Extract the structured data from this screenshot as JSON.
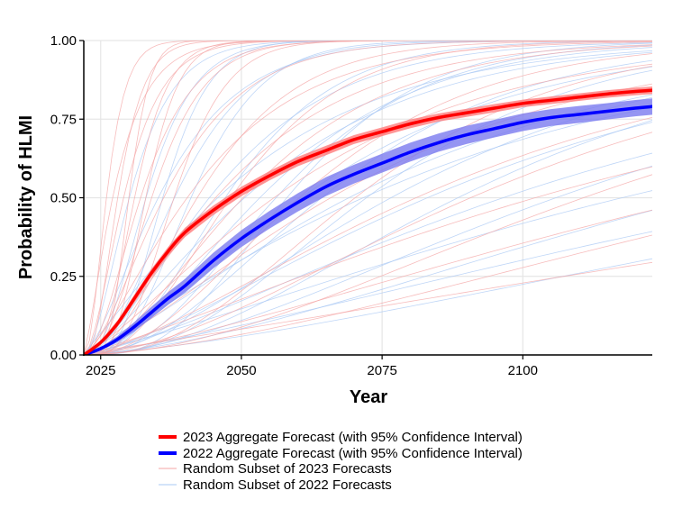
{
  "chart_data": {
    "type": "line",
    "xlabel": "Year",
    "ylabel": "Probability of HLMI",
    "xlim": [
      2022,
      2123
    ],
    "ylim": [
      0,
      1
    ],
    "x_ticks": [
      "2025",
      "2050",
      "2075",
      "2100"
    ],
    "y_ticks": [
      "0.00",
      "0.25",
      "0.50",
      "0.75",
      "1.00"
    ],
    "grid": true,
    "legend_position": "bottom",
    "series": [
      {
        "name": "2023 Aggregate Forecast (with 95% Confidence Interval)",
        "color": "#ff0000",
        "x": [
          2022,
          2025,
          2028,
          2031,
          2034,
          2037,
          2040,
          2045,
          2050,
          2055,
          2060,
          2065,
          2070,
          2075,
          2080,
          2085,
          2090,
          2095,
          2100,
          2105,
          2110,
          2115,
          2120,
          2123
        ],
        "values": [
          0.0,
          0.04,
          0.1,
          0.18,
          0.26,
          0.33,
          0.39,
          0.46,
          0.52,
          0.57,
          0.615,
          0.65,
          0.685,
          0.71,
          0.735,
          0.755,
          0.77,
          0.785,
          0.8,
          0.81,
          0.82,
          0.83,
          0.838,
          0.842
        ],
        "ci_halfwidth": [
          0.0,
          0.005,
          0.01,
          0.012,
          0.013,
          0.014,
          0.015,
          0.015,
          0.015,
          0.015,
          0.015,
          0.015,
          0.014,
          0.014,
          0.014,
          0.013,
          0.013,
          0.013,
          0.012,
          0.012,
          0.012,
          0.012,
          0.012,
          0.012
        ]
      },
      {
        "name": "2022 Aggregate Forecast (with 95% Confidence Interval)",
        "color": "#0000ff",
        "x": [
          2022,
          2025,
          2028,
          2031,
          2034,
          2037,
          2040,
          2045,
          2050,
          2055,
          2060,
          2065,
          2070,
          2075,
          2080,
          2085,
          2090,
          2095,
          2100,
          2105,
          2110,
          2115,
          2120,
          2123
        ],
        "values": [
          0.0,
          0.02,
          0.05,
          0.09,
          0.135,
          0.18,
          0.22,
          0.3,
          0.37,
          0.43,
          0.485,
          0.535,
          0.575,
          0.61,
          0.645,
          0.675,
          0.7,
          0.72,
          0.74,
          0.755,
          0.765,
          0.775,
          0.785,
          0.79
        ],
        "ci_halfwidth": [
          0.0,
          0.005,
          0.01,
          0.015,
          0.018,
          0.02,
          0.022,
          0.025,
          0.027,
          0.028,
          0.029,
          0.03,
          0.03,
          0.03,
          0.03,
          0.029,
          0.029,
          0.028,
          0.028,
          0.027,
          0.027,
          0.026,
          0.026,
          0.026
        ]
      },
      {
        "name": "Random Subset of 2023 Forecasts",
        "color": "#f4a5a5",
        "note_style": "thin individual gamma CDF curves",
        "curves_50pct_year_and_shape": [
          [
            2026,
            2.5
          ],
          [
            2028,
            3
          ],
          [
            2029,
            2
          ],
          [
            2031,
            4
          ],
          [
            2032,
            2.2
          ],
          [
            2034,
            3
          ],
          [
            2036,
            1.8
          ],
          [
            2038,
            5
          ],
          [
            2040,
            1.5
          ],
          [
            2042,
            2.4
          ],
          [
            2045,
            1.6
          ],
          [
            2048,
            3
          ],
          [
            2050,
            2
          ],
          [
            2055,
            1.4
          ],
          [
            2060,
            2.5
          ],
          [
            2065,
            1.5
          ],
          [
            2070,
            3
          ],
          [
            2080,
            1.6
          ],
          [
            2090,
            2
          ],
          [
            2100,
            1.3
          ],
          [
            2110,
            2.2
          ],
          [
            2130,
            1.5
          ],
          [
            2150,
            1.8
          ],
          [
            2200,
            1.2
          ],
          [
            2027,
            1.4
          ],
          [
            2033,
            6
          ],
          [
            2030,
            8
          ]
        ]
      },
      {
        "name": "Random Subset of 2022 Forecasts",
        "color": "#a9c8f4",
        "note_style": "thin individual gamma CDF curves",
        "curves_50pct_year_and_shape": [
          [
            2030,
            2
          ],
          [
            2033,
            3
          ],
          [
            2035,
            1.6
          ],
          [
            2038,
            2.5
          ],
          [
            2041,
            4
          ],
          [
            2044,
            1.8
          ],
          [
            2047,
            3
          ],
          [
            2050,
            1.5
          ],
          [
            2053,
            2.2
          ],
          [
            2056,
            3
          ],
          [
            2060,
            1.7
          ],
          [
            2064,
            2.5
          ],
          [
            2068,
            1.4
          ],
          [
            2072,
            3
          ],
          [
            2076,
            2
          ],
          [
            2082,
            1.6
          ],
          [
            2088,
            2.4
          ],
          [
            2095,
            1.5
          ],
          [
            2105,
            2
          ],
          [
            2115,
            1.3
          ],
          [
            2130,
            1.8
          ],
          [
            2150,
            1.4
          ],
          [
            2180,
            1.6
          ],
          [
            2036,
            5
          ],
          [
            2045,
            1.2
          ],
          [
            2058,
            4
          ],
          [
            2070,
            1.2
          ]
        ]
      }
    ]
  }
}
